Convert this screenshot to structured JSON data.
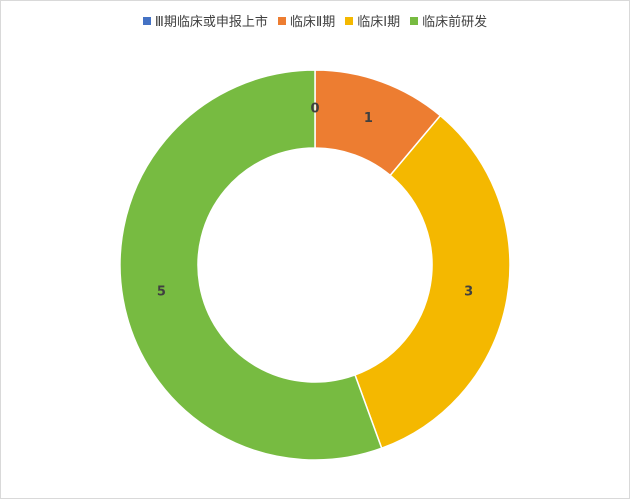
{
  "chart_data": {
    "type": "pie",
    "variant": "donut",
    "title": "",
    "legend_position": "top",
    "categories": [
      "Ⅲ期临床或申报上市",
      "临床Ⅱ期",
      "临床Ⅰ期",
      "临床前研发"
    ],
    "values": [
      0,
      1,
      3,
      5
    ],
    "data_labels": [
      "0",
      "1",
      "3",
      "5"
    ],
    "colors": [
      "#4472c4",
      "#ed7d31",
      "#f4b800",
      "#77bb41"
    ]
  }
}
